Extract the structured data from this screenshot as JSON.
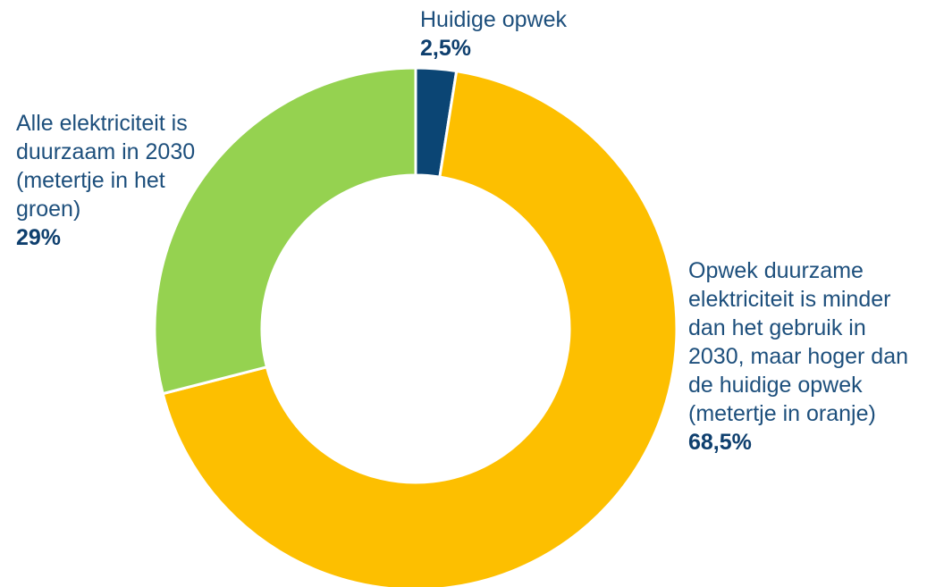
{
  "chart_data": {
    "type": "pie",
    "donut": true,
    "title": "",
    "slices": [
      {
        "label": "Huidige opwek",
        "value": 2.5,
        "value_label": "2,5%",
        "color": "#0b4574"
      },
      {
        "label": "Opwek duurzame elektriciteit is minder dan het gebruik in 2030, maar hoger dan de huidige opwek (metertje in oranje)",
        "value": 68.5,
        "value_label": "68,5%",
        "color": "#fdbf00"
      },
      {
        "label": "Alle elektriciteit is duurzaam in 2030 (metertje in het groen)",
        "value": 29,
        "value_label": "29%",
        "color": "#95d250"
      }
    ],
    "legend": "none"
  }
}
